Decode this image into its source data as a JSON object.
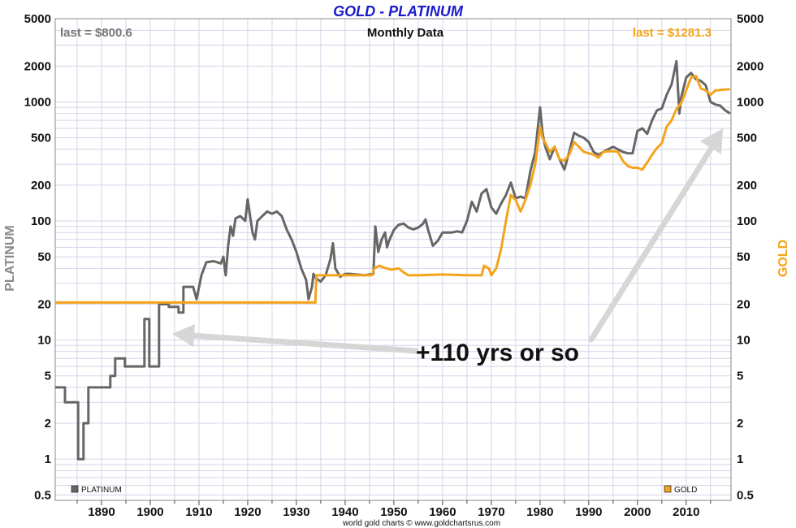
{
  "chart_data": {
    "type": "line",
    "title": "GOLD - PLATINUM",
    "subtitle": "Monthly Data",
    "ylabel_left": "PLATINUM",
    "ylabel_right": "GOLD",
    "yscale": "log",
    "ylim": [
      0.45,
      5000
    ],
    "xlim": [
      1880.5,
      2019.2
    ],
    "yticks": [
      0.5,
      1,
      2,
      5,
      10,
      20,
      50,
      100,
      200,
      500,
      1000,
      2000,
      5000
    ],
    "ytick_labels": [
      "0.5",
      "1",
      "2",
      "5",
      "10",
      "20",
      "50",
      "100",
      "200",
      "500",
      "1000",
      "2000",
      "5000"
    ],
    "xticks": [
      1890,
      1900,
      1910,
      1920,
      1930,
      1940,
      1950,
      1960,
      1970,
      1980,
      1990,
      2000,
      2010
    ],
    "xtick_labels": [
      "1890",
      "1900",
      "1910",
      "1920",
      "1930",
      "1940",
      "1950",
      "1960",
      "1970",
      "1980",
      "1990",
      "2000",
      "2010"
    ],
    "grid": true,
    "last_left": "last = $800.6",
    "last_right": "last = $1281.3",
    "annotation": "+110 yrs or so",
    "credit": "world gold charts © www.goldchartsrus.com",
    "series": [
      {
        "name": "PLATINUM",
        "color": "#666666",
        "points": [
          [
            1880.5,
            4
          ],
          [
            1882.5,
            4
          ],
          [
            1882.5,
            3
          ],
          [
            1885.2,
            3
          ],
          [
            1885.2,
            1
          ],
          [
            1886.3,
            1
          ],
          [
            1886.3,
            2
          ],
          [
            1887.3,
            2
          ],
          [
            1887.3,
            4
          ],
          [
            1891.8,
            4
          ],
          [
            1891.8,
            5
          ],
          [
            1892.8,
            5
          ],
          [
            1892.8,
            7
          ],
          [
            1894.8,
            7
          ],
          [
            1894.8,
            6
          ],
          [
            1898.8,
            6
          ],
          [
            1898.8,
            15
          ],
          [
            1899.8,
            15
          ],
          [
            1899.8,
            6
          ],
          [
            1901.8,
            6
          ],
          [
            1901.8,
            20
          ],
          [
            1903.8,
            20
          ],
          [
            1903.8,
            19
          ],
          [
            1905.8,
            19
          ],
          [
            1905.8,
            17
          ],
          [
            1906.8,
            17
          ],
          [
            1906.8,
            28
          ],
          [
            1908.8,
            28
          ],
          [
            1909.5,
            22
          ],
          [
            1910.5,
            35
          ],
          [
            1911.5,
            45
          ],
          [
            1913,
            46
          ],
          [
            1914.5,
            44
          ],
          [
            1915,
            50
          ],
          [
            1915.5,
            35
          ],
          [
            1916,
            62
          ],
          [
            1916.5,
            90
          ],
          [
            1917,
            75
          ],
          [
            1917.5,
            105
          ],
          [
            1918.5,
            110
          ],
          [
            1919.5,
            100
          ],
          [
            1920,
            152
          ],
          [
            1920.5,
            110
          ],
          [
            1921,
            80
          ],
          [
            1921.5,
            70
          ],
          [
            1922,
            100
          ],
          [
            1923,
            110
          ],
          [
            1924,
            120
          ],
          [
            1925,
            115
          ],
          [
            1926,
            120
          ],
          [
            1927,
            110
          ],
          [
            1928,
            85
          ],
          [
            1929,
            70
          ],
          [
            1930,
            55
          ],
          [
            1931,
            40
          ],
          [
            1932,
            32
          ],
          [
            1932.5,
            22
          ],
          [
            1933.2,
            28
          ],
          [
            1933.5,
            36
          ],
          [
            1934,
            33
          ],
          [
            1935,
            31
          ],
          [
            1936,
            35
          ],
          [
            1937,
            48
          ],
          [
            1937.5,
            65
          ],
          [
            1938,
            40
          ],
          [
            1939,
            34
          ],
          [
            1940,
            36
          ],
          [
            1941,
            36
          ],
          [
            1944,
            35
          ],
          [
            1945.8,
            36
          ],
          [
            1946.2,
            90
          ],
          [
            1946.8,
            55
          ],
          [
            1947.5,
            70
          ],
          [
            1948.2,
            80
          ],
          [
            1948.6,
            60
          ],
          [
            1949,
            68
          ],
          [
            1950,
            84
          ],
          [
            1951,
            93
          ],
          [
            1952,
            95
          ],
          [
            1953,
            88
          ],
          [
            1954,
            85
          ],
          [
            1955,
            88
          ],
          [
            1956,
            95
          ],
          [
            1956.5,
            103
          ],
          [
            1957,
            85
          ],
          [
            1958,
            62
          ],
          [
            1959,
            68
          ],
          [
            1960,
            80
          ],
          [
            1962,
            80
          ],
          [
            1963,
            82
          ],
          [
            1964,
            80
          ],
          [
            1965,
            100
          ],
          [
            1966,
            145
          ],
          [
            1967,
            120
          ],
          [
            1968,
            170
          ],
          [
            1969,
            185
          ],
          [
            1970,
            130
          ],
          [
            1971,
            115
          ],
          [
            1972,
            140
          ],
          [
            1973,
            165
          ],
          [
            1974,
            210
          ],
          [
            1975,
            155
          ],
          [
            1976,
            160
          ],
          [
            1977,
            155
          ],
          [
            1978,
            260
          ],
          [
            1979,
            380
          ],
          [
            1980,
            900
          ],
          [
            1980.5,
            550
          ],
          [
            1981,
            430
          ],
          [
            1982,
            330
          ],
          [
            1983,
            420
          ],
          [
            1984,
            330
          ],
          [
            1985,
            270
          ],
          [
            1986,
            380
          ],
          [
            1987,
            550
          ],
          [
            1988,
            520
          ],
          [
            1989,
            500
          ],
          [
            1990,
            460
          ],
          [
            1991,
            380
          ],
          [
            1992,
            360
          ],
          [
            1993,
            380
          ],
          [
            1994,
            400
          ],
          [
            1995,
            420
          ],
          [
            1996,
            400
          ],
          [
            1997,
            380
          ],
          [
            1998,
            370
          ],
          [
            1999,
            370
          ],
          [
            2000,
            570
          ],
          [
            2001,
            600
          ],
          [
            2002,
            540
          ],
          [
            2003,
            700
          ],
          [
            2004,
            850
          ],
          [
            2005,
            880
          ],
          [
            2006,
            1150
          ],
          [
            2007,
            1400
          ],
          [
            2008,
            2200
          ],
          [
            2008.6,
            800
          ],
          [
            2009,
            1100
          ],
          [
            2010,
            1600
          ],
          [
            2011,
            1750
          ],
          [
            2012,
            1550
          ],
          [
            2013,
            1500
          ],
          [
            2014,
            1380
          ],
          [
            2015,
            1000
          ],
          [
            2016,
            950
          ],
          [
            2017,
            930
          ],
          [
            2018,
            850
          ],
          [
            2019,
            800.6
          ]
        ]
      },
      {
        "name": "GOLD",
        "color": "#f5a31a",
        "points": [
          [
            1880.5,
            20.67
          ],
          [
            1933.9,
            20.67
          ],
          [
            1934.1,
            35
          ],
          [
            1939,
            35
          ],
          [
            1944,
            35
          ],
          [
            1945.5,
            35
          ],
          [
            1946,
            40
          ],
          [
            1947,
            42
          ],
          [
            1948.5,
            40
          ],
          [
            1949.5,
            39
          ],
          [
            1951,
            40
          ],
          [
            1952,
            37
          ],
          [
            1953,
            35
          ],
          [
            1955,
            35
          ],
          [
            1960,
            35.5
          ],
          [
            1965,
            35
          ],
          [
            1968,
            35
          ],
          [
            1968.5,
            42
          ],
          [
            1969.5,
            40
          ],
          [
            1970,
            35
          ],
          [
            1971,
            40
          ],
          [
            1972,
            58
          ],
          [
            1973,
            100
          ],
          [
            1974,
            165
          ],
          [
            1975,
            150
          ],
          [
            1976,
            120
          ],
          [
            1977,
            150
          ],
          [
            1978,
            200
          ],
          [
            1979,
            300
          ],
          [
            1980,
            620
          ],
          [
            1980.5,
            500
          ],
          [
            1981,
            460
          ],
          [
            1982,
            380
          ],
          [
            1983,
            420
          ],
          [
            1984,
            330
          ],
          [
            1985,
            320
          ],
          [
            1986,
            360
          ],
          [
            1987,
            460
          ],
          [
            1988,
            420
          ],
          [
            1989,
            380
          ],
          [
            1990,
            370
          ],
          [
            1991,
            360
          ],
          [
            1992,
            340
          ],
          [
            1993,
            380
          ],
          [
            1994,
            385
          ],
          [
            1995,
            385
          ],
          [
            1996,
            380
          ],
          [
            1997,
            320
          ],
          [
            1998,
            290
          ],
          [
            1999,
            280
          ],
          [
            2000,
            280
          ],
          [
            2001,
            270
          ],
          [
            2002,
            310
          ],
          [
            2003,
            360
          ],
          [
            2004,
            410
          ],
          [
            2005,
            450
          ],
          [
            2006,
            620
          ],
          [
            2007,
            700
          ],
          [
            2008,
            870
          ],
          [
            2009,
            980
          ],
          [
            2010,
            1250
          ],
          [
            2011,
            1600
          ],
          [
            2012,
            1650
          ],
          [
            2013,
            1300
          ],
          [
            2014,
            1250
          ],
          [
            2015,
            1150
          ],
          [
            2016,
            1250
          ],
          [
            2017,
            1260
          ],
          [
            2018,
            1270
          ],
          [
            2019,
            1281.3
          ]
        ]
      }
    ],
    "legend": [
      "PLATINUM",
      "GOLD"
    ]
  }
}
